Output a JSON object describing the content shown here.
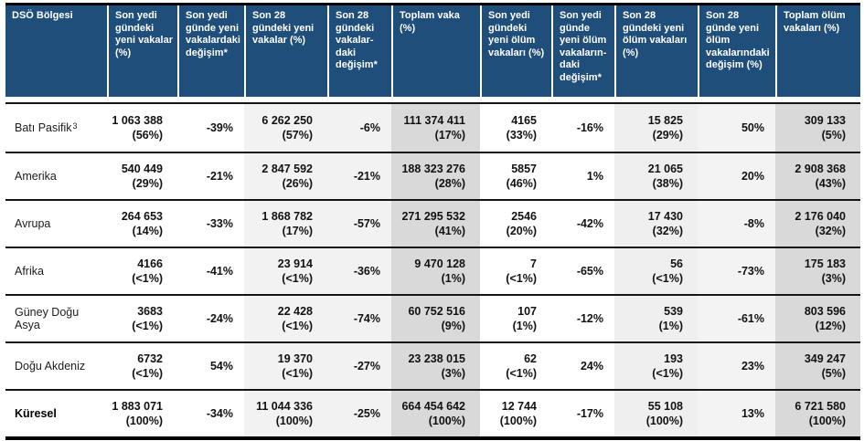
{
  "t": {
    "columns": [
      {
        "label": "DSÖ Bölgesi"
      },
      {
        "label": "Son yedi gündeki yeni vakalar (%)"
      },
      {
        "label": "Son yedi günde yeni vakalardaki değişim*"
      },
      {
        "label": "Son 28 gündeki yeni vakalar (%)"
      },
      {
        "label": "Son 28 gündeki vakalar-daki değişim*"
      },
      {
        "label": "Toplam vaka (%)"
      },
      {
        "label": "Son yedi gündeki yeni ölüm vakaları (%)"
      },
      {
        "label": "Son yedi günde yeni ölüm vakaların-daki değişim*"
      },
      {
        "label": "Son 28 gündeki yeni ölüm vakaları (%)"
      },
      {
        "label": "Son 28 günde yeni ölüm vakalarındaki değişim (%)"
      },
      {
        "label": "Toplam ölüm vakaları (%)"
      }
    ],
    "rows": [
      {
        "region": "Batı Pasifik",
        "sup": "3",
        "c7": {
          "value": "1 063 388",
          "pct": "(56%)"
        },
        "c7chg": "-39%",
        "c28": {
          "value": "6 262 250",
          "pct": "(57%)"
        },
        "c28chg": "-6%",
        "tot": {
          "value": "111 374 411",
          "pct": "(17%)"
        },
        "d7": {
          "value": "4165",
          "pct": "(33%)"
        },
        "d7chg": "-16%",
        "d28": {
          "value": "15 825",
          "pct": "(29%)"
        },
        "d28chg": "50%",
        "dtot": {
          "value": "309 133",
          "pct": "(5%)"
        }
      },
      {
        "region": "Amerika",
        "sup": "",
        "c7": {
          "value": "540 449",
          "pct": "(29%)"
        },
        "c7chg": "-21%",
        "c28": {
          "value": "2 847 592",
          "pct": "(26%)"
        },
        "c28chg": "-21%",
        "tot": {
          "value": "188 323 276",
          "pct": "(28%)"
        },
        "d7": {
          "value": "5857",
          "pct": "(46%)"
        },
        "d7chg": "1%",
        "d28": {
          "value": "21 065",
          "pct": "(38%)"
        },
        "d28chg": "20%",
        "dtot": {
          "value": "2 908 368",
          "pct": "(43%)"
        }
      },
      {
        "region": "Avrupa",
        "sup": "",
        "c7": {
          "value": "264 653",
          "pct": "(14%)"
        },
        "c7chg": "-33%",
        "c28": {
          "value": "1 868 782",
          "pct": "(17%)"
        },
        "c28chg": "-57%",
        "tot": {
          "value": "271 295 532",
          "pct": "(41%)"
        },
        "d7": {
          "value": "2546",
          "pct": "(20%)"
        },
        "d7chg": "-42%",
        "d28": {
          "value": "17 430",
          "pct": "(32%)"
        },
        "d28chg": "-8%",
        "dtot": {
          "value": "2 176 040",
          "pct": "(32%)"
        }
      },
      {
        "region": "Afrika",
        "sup": "",
        "c7": {
          "value": "4166",
          "pct": "(<1%)"
        },
        "c7chg": "-41%",
        "c28": {
          "value": "23 914",
          "pct": "(<1%)"
        },
        "c28chg": "-36%",
        "tot": {
          "value": "9 470 128",
          "pct": "(1%)"
        },
        "d7": {
          "value": "7",
          "pct": "(<1%)"
        },
        "d7chg": "-65%",
        "d28": {
          "value": "56",
          "pct": "(<1%)"
        },
        "d28chg": "-73%",
        "dtot": {
          "value": "175 183",
          "pct": "(3%)"
        }
      },
      {
        "region": "Güney Doğu Asya",
        "sup": "",
        "c7": {
          "value": "3683",
          "pct": "(<1%)"
        },
        "c7chg": "-24%",
        "c28": {
          "value": "22 428",
          "pct": "(<1%)"
        },
        "c28chg": "-74%",
        "tot": {
          "value": "60 752 516",
          "pct": "(9%)"
        },
        "d7": {
          "value": "107",
          "pct": "(1%)"
        },
        "d7chg": "-12%",
        "d28": {
          "value": "539",
          "pct": "(1%)"
        },
        "d28chg": "-61%",
        "dtot": {
          "value": "803 596",
          "pct": "(12%)"
        }
      },
      {
        "region": "Doğu Akdeniz",
        "sup": "",
        "c7": {
          "value": "6732",
          "pct": "(<1%)"
        },
        "c7chg": "54%",
        "c28": {
          "value": "19 370",
          "pct": "(<1%)"
        },
        "c28chg": "-27%",
        "tot": {
          "value": "23 238 015",
          "pct": "(3%)"
        },
        "d7": {
          "value": "62",
          "pct": "(<1%)"
        },
        "d7chg": "24%",
        "d28": {
          "value": "193",
          "pct": "(<1%)"
        },
        "d28chg": "23%",
        "dtot": {
          "value": "349 247",
          "pct": "(5%)"
        }
      },
      {
        "region": "Küresel",
        "sup": "",
        "is_total": true,
        "c7": {
          "value": "1 883 071",
          "pct": "(100%)"
        },
        "c7chg": "-34%",
        "c28": {
          "value": "11 044 336",
          "pct": "(100%)"
        },
        "c28chg": "-25%",
        "tot": {
          "value": "664 454 642",
          "pct": "(100%)"
        },
        "d7": {
          "value": "12 744",
          "pct": "(100%)"
        },
        "d7chg": "-17%",
        "d28": {
          "value": "55 108",
          "pct": "(100%)"
        },
        "d28chg": "13%",
        "dtot": {
          "value": "6 721 580",
          "pct": "(100%)"
        }
      }
    ],
    "colors": {
      "header_blue": "#1E4E79",
      "shade_light": "#F2F2F2",
      "shade_medium": "#D9D9D9"
    }
  }
}
